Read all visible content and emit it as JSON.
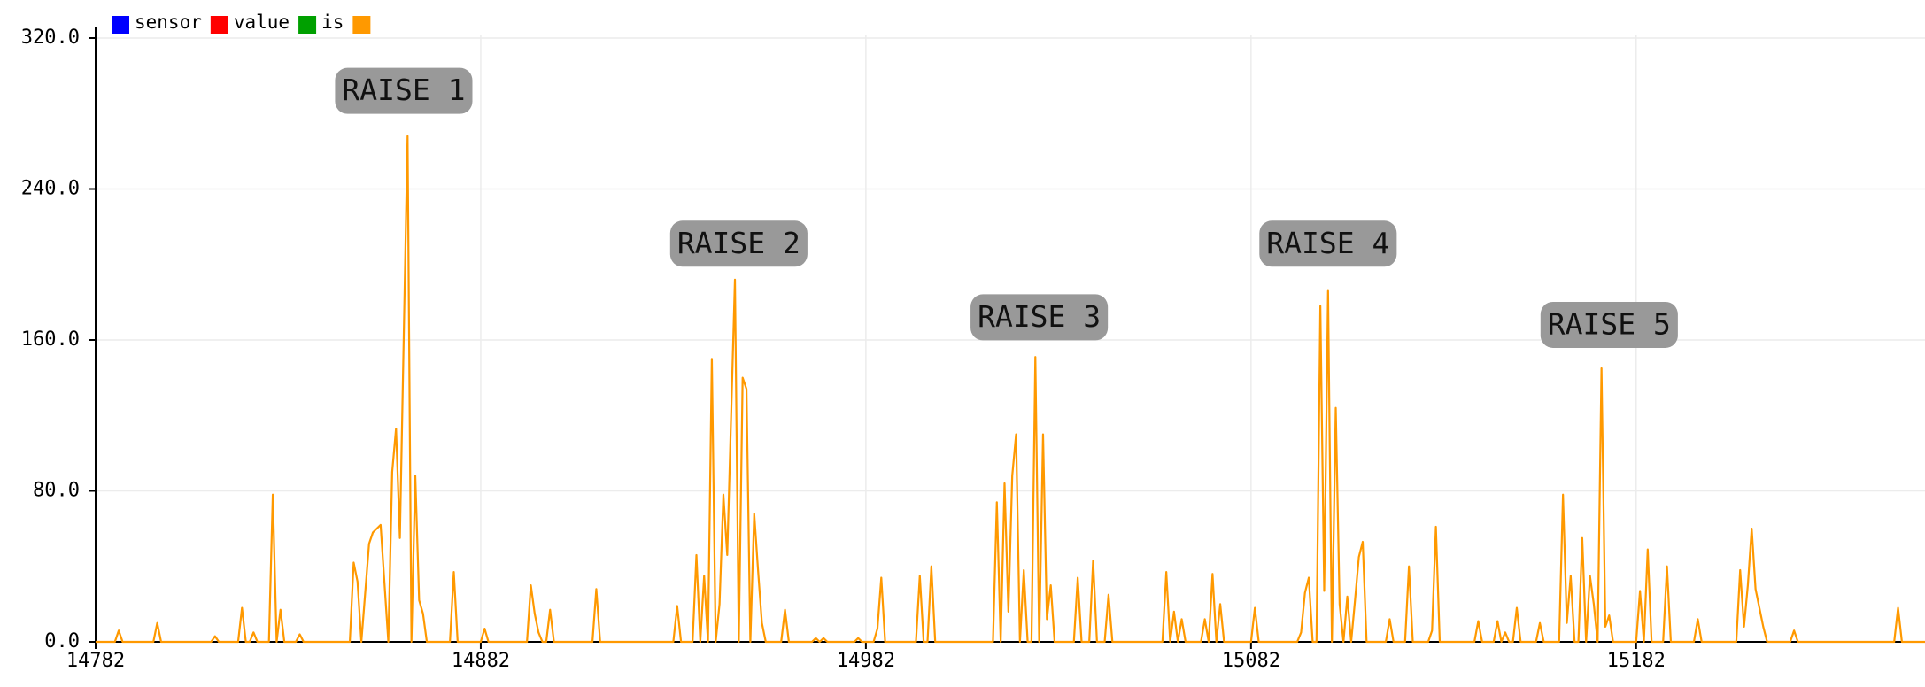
{
  "chart_data": {
    "type": "line",
    "series": [
      {
        "name": "sensor",
        "color": "#0000ff"
      },
      {
        "name": "value",
        "color": "#ff0000"
      },
      {
        "name": "is",
        "color": "#00a000"
      },
      {
        "color": "#ff9900",
        "values": [
          0,
          0,
          6,
          0,
          0,
          10,
          0,
          0,
          3,
          0,
          0,
          18,
          0,
          0,
          5,
          0,
          0,
          78,
          0,
          17,
          0,
          0,
          4,
          0,
          0,
          42,
          32,
          0,
          52,
          58,
          62,
          0,
          90,
          113,
          55,
          268,
          0,
          88,
          22,
          15,
          0,
          0,
          37,
          0,
          0,
          7,
          0,
          0,
          30,
          15,
          5,
          0,
          0,
          17,
          0,
          0,
          28,
          0,
          0,
          19,
          0,
          0,
          46,
          0,
          35,
          0,
          150,
          0,
          20,
          78,
          46,
          192,
          0,
          140,
          134,
          0,
          68,
          38,
          10,
          0,
          0,
          17,
          0,
          0,
          2,
          0,
          2,
          0,
          0,
          2,
          0,
          0,
          7,
          34,
          0,
          0,
          35,
          0,
          0,
          40,
          0,
          0,
          74,
          0,
          84,
          16,
          88,
          110,
          0,
          38,
          0,
          0,
          151,
          0,
          110,
          12,
          30,
          0,
          0,
          34,
          0,
          0,
          43,
          0,
          0,
          25,
          0,
          0,
          37,
          0,
          16,
          0,
          12,
          0,
          0,
          12,
          0,
          36,
          0,
          20,
          0,
          0,
          18,
          0,
          0,
          5,
          26,
          34,
          0,
          0,
          178,
          27,
          186,
          0,
          124,
          20,
          0,
          24,
          0,
          22,
          45,
          53,
          0,
          0,
          12,
          0,
          0,
          40,
          0,
          0,
          6,
          61,
          0,
          0,
          11,
          0,
          0,
          11,
          0,
          5,
          0,
          0,
          18,
          0,
          0,
          10,
          0,
          0,
          78,
          10,
          35,
          0,
          0,
          55,
          0,
          35,
          20,
          0,
          145,
          8,
          14,
          0,
          0,
          27,
          0,
          49,
          0,
          0,
          40,
          0,
          0,
          12,
          0,
          0,
          38,
          8,
          30,
          60,
          28,
          18,
          8,
          0,
          0,
          6,
          0,
          0,
          18,
          0,
          0
        ]
      }
    ],
    "x": [
      14782,
      14787,
      14788,
      14789,
      14797,
      14798,
      14799,
      14812,
      14813,
      14814,
      14819,
      14820,
      14821,
      14822,
      14823,
      14824,
      14827,
      14828,
      14829,
      14830,
      14831,
      14834,
      14835,
      14836,
      14848,
      14849,
      14850,
      14851,
      14853,
      14854,
      14856,
      14858,
      14859,
      14860,
      14861,
      14863,
      14864,
      14865,
      14866,
      14867,
      14868,
      14874,
      14875,
      14876,
      14882,
      14883,
      14884,
      14894,
      14895,
      14896,
      14897,
      14898,
      14899,
      14900,
      14901,
      14911,
      14912,
      14913,
      14932,
      14933,
      14934,
      14937,
      14938,
      14939,
      14940,
      14941,
      14942,
      14943,
      14944,
      14945,
      14946,
      14948,
      14949,
      14950,
      14951,
      14952,
      14953,
      14954,
      14955,
      14956,
      14960,
      14961,
      14962,
      14968,
      14969,
      14970,
      14971,
      14972,
      14979,
      14980,
      14981,
      14984,
      14985,
      14986,
      14987,
      14995,
      14996,
      14997,
      14998,
      14999,
      15000,
      15015,
      15016,
      15017,
      15018,
      15019,
      15020,
      15021,
      15022,
      15023,
      15024,
      15025,
      15026,
      15027,
      15028,
      15029,
      15030,
      15031,
      15036,
      15037,
      15038,
      15040,
      15041,
      15042,
      15044,
      15045,
      15046,
      15059,
      15060,
      15061,
      15062,
      15063,
      15064,
      15065,
      15069,
      15070,
      15071,
      15072,
      15073,
      15074,
      15075,
      15082,
      15083,
      15084,
      15094,
      15095,
      15096,
      15097,
      15098,
      15099,
      15100,
      15101,
      15102,
      15103,
      15104,
      15105,
      15106,
      15107,
      15108,
      15109,
      15110,
      15111,
      15112,
      15117,
      15118,
      15119,
      15122,
      15123,
      15124,
      15128,
      15129,
      15130,
      15131,
      15140,
      15141,
      15142,
      15145,
      15146,
      15147,
      15148,
      15149,
      15150,
      15151,
      15152,
      15156,
      15157,
      15158,
      15162,
      15163,
      15164,
      15165,
      15166,
      15167,
      15168,
      15169,
      15170,
      15171,
      15172,
      15173,
      15174,
      15175,
      15176,
      15182,
      15183,
      15184,
      15185,
      15186,
      15189,
      15190,
      15191,
      15197,
      15198,
      15199,
      15208,
      15209,
      15210,
      15211,
      15212,
      15213,
      15214,
      15215,
      15216,
      15222,
      15223,
      15224,
      15249,
      15250,
      15251,
      15257
    ],
    "xlim": [
      14782,
      15257
    ],
    "xticks": [
      14782,
      14882,
      14982,
      15082,
      15182
    ],
    "ylim": [
      0,
      320
    ],
    "yticks": [
      {
        "value": 0,
        "label": "0.0"
      },
      {
        "value": 80,
        "label": "80.0"
      },
      {
        "value": 160,
        "label": "160.0"
      },
      {
        "value": 240,
        "label": "240.0"
      },
      {
        "value": 320,
        "label": "320.0"
      }
    ],
    "grid": true,
    "annotations": [
      {
        "text": "RAISE 1",
        "x": 14862,
        "y": 292
      },
      {
        "text": "RAISE 2",
        "x": 14949,
        "y": 211
      },
      {
        "text": "RAISE 3",
        "x": 15027,
        "y": 172
      },
      {
        "text": "RAISE 4",
        "x": 15102,
        "y": 211
      },
      {
        "text": "RAISE 5",
        "x": 15175,
        "y": 168
      }
    ]
  }
}
